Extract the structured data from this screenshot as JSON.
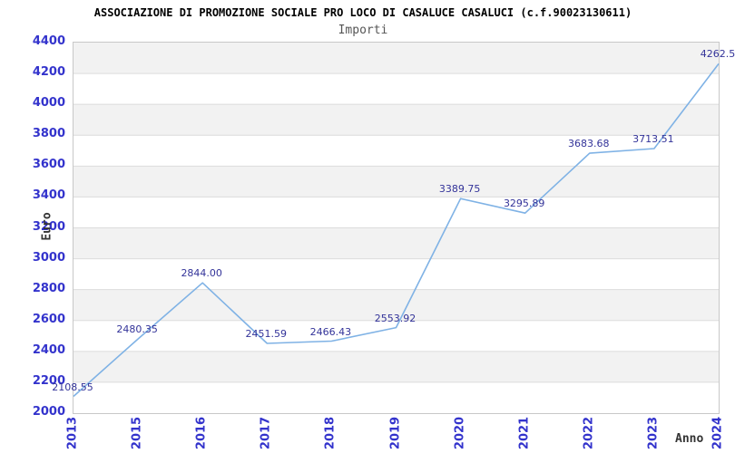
{
  "header": {
    "title": "ASSOCIAZIONE DI PROMOZIONE SOCIALE PRO LOCO DI CASALUCE CASALUCI (c.f.90023130611)",
    "subtitle": "Importi"
  },
  "chart_data": {
    "type": "line",
    "title": "Importi",
    "xlabel": "Anno",
    "ylabel": "Euro",
    "categories": [
      "2013",
      "2015",
      "2016",
      "2017",
      "2018",
      "2019",
      "2020",
      "2021",
      "2022",
      "2023",
      "2024"
    ],
    "values": [
      2108.55,
      2480.35,
      2844.0,
      2451.59,
      2466.43,
      2553.92,
      3389.75,
      3295.89,
      3683.68,
      3713.51,
      4262.5
    ],
    "point_labels": [
      "2108.55",
      "2480.35",
      "2844.00",
      "2451.59",
      "2466.43",
      "2553.92",
      "3389.75",
      "3295.89",
      "3683.68",
      "3713.51",
      "4262.5"
    ],
    "ylim": [
      2000,
      4400
    ],
    "ytick_step": 200,
    "ytick_labels": [
      "2000",
      "2200",
      "2400",
      "2600",
      "2800",
      "3000",
      "3200",
      "3400",
      "3600",
      "3800",
      "4000",
      "4200",
      "4400"
    ],
    "grid": true,
    "legend": false,
    "band_fill": "alternating horizontal bands, gray on top interval"
  },
  "colors": {
    "line": "#7fb2e5",
    "tick_label": "#3333cc",
    "data_label": "#333399",
    "band_gray": "#f2f2f2",
    "gridline": "#dcdcdc",
    "plot_border": "#c8c8c8",
    "title": "#000000",
    "subtitle": "#555555",
    "axis_title": "#333333"
  }
}
